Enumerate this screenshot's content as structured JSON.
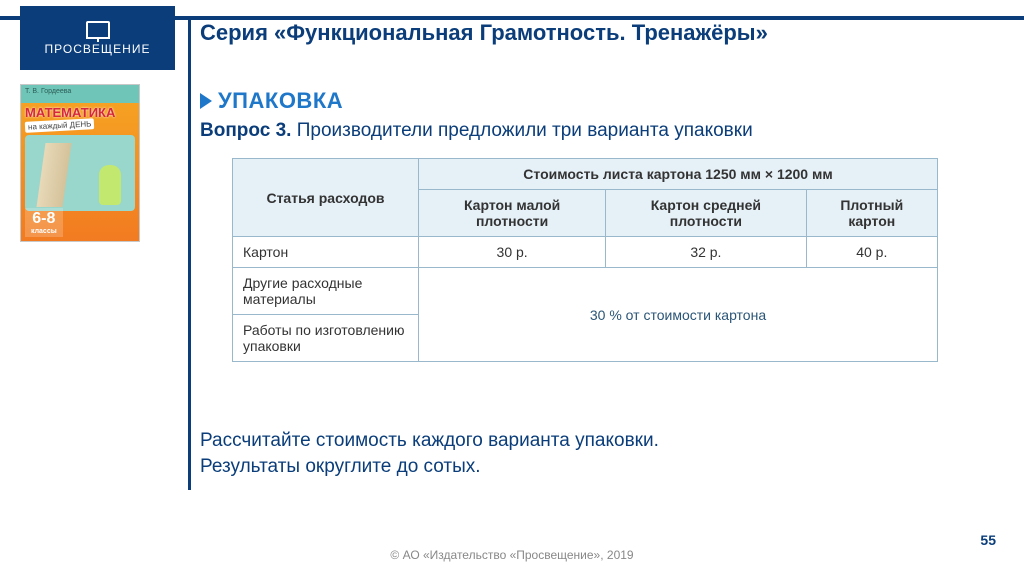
{
  "logo": {
    "brand": "ПРОСВЕЩЕНИЕ"
  },
  "series_title": "Серия «Функциональная Грамотность. Тренажёры»",
  "section": "УПАКОВКА",
  "question_label": "Вопрос 3.",
  "question_text": " Производители предложили три варианта упаковки",
  "book": {
    "top_line": "Т. В. Гордеева",
    "title": "МАТЕМАТИКА",
    "subtitle": "на каждый ДЕНЬ",
    "grade": "6-8",
    "grade_sub": "классы"
  },
  "table": {
    "header1": "Статья расходов",
    "header2": "Стоимость листа картона 1250 мм × 1200 мм",
    "sub1": "Картон малой плотности",
    "sub2": "Картон сред­ней плотности",
    "sub3": "Плотный картон",
    "rows": [
      {
        "label": "Картон",
        "v1": "30 р.",
        "v2": "32 р.",
        "v3": "40 р."
      },
      {
        "label": "Другие расходные материалы"
      },
      {
        "label": "Работы по изго­товлению упаковки"
      }
    ],
    "merged_note": "30 % от стоимости картона"
  },
  "conclusion_l1": "Рассчитайте стоимость каждого варианта упаковки.",
  "conclusion_l2": "Результаты округлите до сотых.",
  "footer": "© АО «Издательство «Просвещение», 2019",
  "page_number": "55"
}
